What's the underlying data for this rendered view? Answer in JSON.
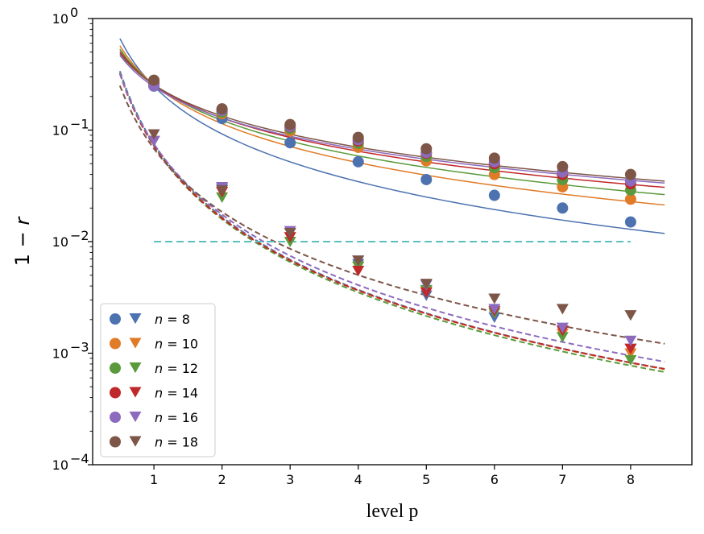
{
  "chart_data": {
    "type": "scatter",
    "title": "",
    "xlabel": "level p",
    "ylabel": "1 − r",
    "ylabel_parts": {
      "prefix": "1 − ",
      "var": "r"
    },
    "xscale": "linear",
    "yscale": "log",
    "xlim": [
      0.1,
      8.9
    ],
    "ylim": [
      0.0001,
      1
    ],
    "xticks": [
      1,
      2,
      3,
      4,
      5,
      6,
      7,
      8
    ],
    "xtick_labels": [
      "1",
      "2",
      "3",
      "4",
      "5",
      "6",
      "7",
      "8"
    ],
    "yticks": [
      0.0001,
      0.001,
      0.01,
      0.1,
      1
    ],
    "ytick_labels": [
      {
        "base": "10",
        "exp": "−4"
      },
      {
        "base": "10",
        "exp": "−3"
      },
      {
        "base": "10",
        "exp": "−2"
      },
      {
        "base": "10",
        "exp": "−1"
      },
      {
        "base": "10",
        "exp": "0"
      }
    ],
    "grid": false,
    "legend_position": "lower-left",
    "x": [
      1,
      2,
      3,
      4,
      5,
      6,
      7,
      8
    ],
    "series": [
      {
        "name": "n = 8",
        "n": "8",
        "color": "#4c72b0",
        "circles": [
          0.248,
          0.127,
          0.077,
          0.052,
          0.036,
          0.026,
          0.02,
          0.015
        ],
        "triangles": [
          0.08,
          0.03,
          0.012,
          0.0063,
          0.0033,
          0.0021,
          0.0016,
          0.0011
        ]
      },
      {
        "name": "n = 10",
        "n": "10",
        "color": "#e07b28",
        "circles": [
          0.26,
          0.14,
          0.098,
          0.07,
          0.053,
          0.04,
          0.031,
          0.024
        ],
        "triangles": [
          0.08,
          0.028,
          0.011,
          0.006,
          0.0036,
          0.0023,
          0.0015,
          0.001
        ]
      },
      {
        "name": "n = 12",
        "n": "12",
        "color": "#5a9a3c",
        "circles": [
          0.26,
          0.145,
          0.103,
          0.076,
          0.058,
          0.046,
          0.036,
          0.029
        ],
        "triangles": [
          0.08,
          0.025,
          0.01,
          0.006,
          0.0037,
          0.0023,
          0.0014,
          0.00087
        ]
      },
      {
        "name": "n = 14",
        "n": "14",
        "color": "#c0282a",
        "circles": [
          0.26,
          0.15,
          0.107,
          0.08,
          0.062,
          0.05,
          0.04,
          0.033
        ],
        "triangles": [
          0.08,
          0.028,
          0.011,
          0.0055,
          0.0035,
          0.0024,
          0.0016,
          0.0011
        ]
      },
      {
        "name": "n = 16",
        "n": "16",
        "color": "#8c6bbf",
        "circles": [
          0.25,
          0.15,
          0.108,
          0.082,
          0.063,
          0.052,
          0.042,
          0.035
        ],
        "triangles": [
          0.08,
          0.031,
          0.0125,
          0.0068,
          0.0041,
          0.0025,
          0.0017,
          0.0013
        ]
      },
      {
        "name": "n = 18",
        "n": "18",
        "color": "#7d5648",
        "circles": [
          0.28,
          0.155,
          0.112,
          0.086,
          0.068,
          0.056,
          0.047,
          0.04
        ],
        "triangles": [
          0.092,
          0.029,
          0.012,
          0.0068,
          0.0042,
          0.0031,
          0.0025,
          0.0022
        ]
      }
    ],
    "fits": {
      "x_range": [
        0.5,
        8.5
      ],
      "circle_fits": [
        {
          "n": "8",
          "a": 0.247,
          "b": 1.42
        },
        {
          "n": "10",
          "a": 0.255,
          "b": 1.16
        },
        {
          "n": "12",
          "a": 0.255,
          "b": 1.06
        },
        {
          "n": "14",
          "a": 0.255,
          "b": 0.99
        },
        {
          "n": "16",
          "a": 0.245,
          "b": 0.93
        },
        {
          "n": "18",
          "a": 0.255,
          "b": 0.93
        }
      ],
      "triangle_fits": [
        {
          "n": "8",
          "a": 0.075,
          "b": 2.17
        },
        {
          "n": "10",
          "a": 0.073,
          "b": 2.16
        },
        {
          "n": "12",
          "a": 0.072,
          "b": 2.18
        },
        {
          "n": "14",
          "a": 0.072,
          "b": 2.15
        },
        {
          "n": "16",
          "a": 0.075,
          "b": 2.1
        },
        {
          "n": "18",
          "a": 0.068,
          "b": 1.88
        }
      ]
    },
    "reference_line": {
      "y": 0.01,
      "x_range": [
        1,
        8
      ],
      "color": "#5bbfbf",
      "style": "dashed"
    }
  }
}
